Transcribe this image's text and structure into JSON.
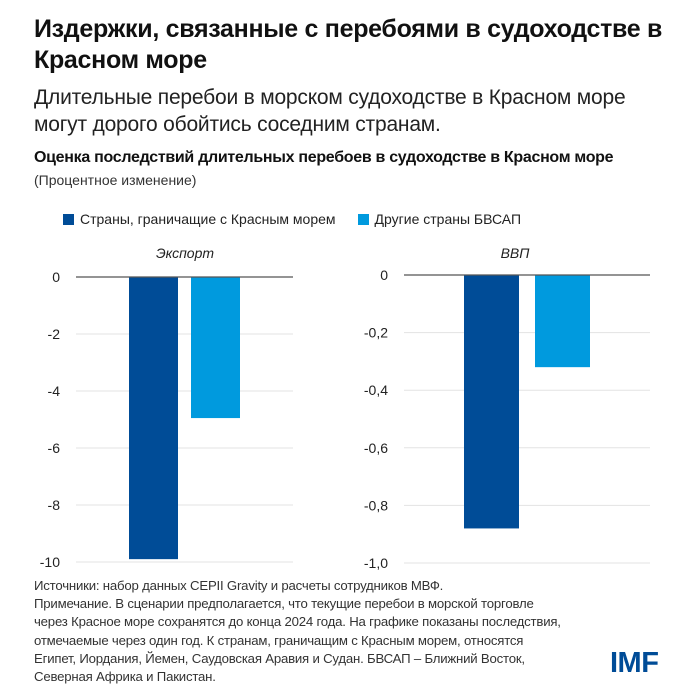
{
  "header": {
    "title": "Издержки, связанные с перебоями в судоходстве в Красном море",
    "subtitle": "Длительные перебои в морском судоходстве в Красном море могут дорого обойтись соседним странам."
  },
  "chart_data": [
    {
      "type": "bar",
      "title": "Экспорт",
      "categories": [
        "Экспорт"
      ],
      "series": [
        {
          "name": "Страны, граничащие с Красным морем",
          "color": "#004c97",
          "values": [
            -9.9
          ]
        },
        {
          "name": "Другие страны БВСАП",
          "color": "#009ade",
          "values": [
            -4.95
          ]
        }
      ],
      "ylim": [
        -10,
        0
      ],
      "yticks": [
        0,
        -2,
        -4,
        -6,
        -8,
        -10
      ],
      "ytick_labels": [
        "0",
        "-2",
        "-4",
        "-6",
        "-8",
        "-10"
      ],
      "grid": true
    },
    {
      "type": "bar",
      "title": "ВВП",
      "categories": [
        "ВВП"
      ],
      "series": [
        {
          "name": "Страны, граничащие с Красным морем",
          "color": "#004c97",
          "values": [
            -0.88
          ]
        },
        {
          "name": "Другие страны БВСАП",
          "color": "#009ade",
          "values": [
            -0.32
          ]
        }
      ],
      "ylim": [
        -1.0,
        0
      ],
      "yticks": [
        0,
        -0.2,
        -0.4,
        -0.6,
        -0.8,
        -1.0
      ],
      "ytick_labels": [
        "0",
        "-0,2",
        "-0,4",
        "-0,6",
        "-0,8",
        "-1,0"
      ],
      "grid": true
    }
  ],
  "chart_meta": {
    "title": "Оценка последствий длительных перебоев в судоходстве в Красном море",
    "unit": "(Процентное изменение)",
    "legend": [
      {
        "label": "Страны, граничащие с Красным морем",
        "color": "#004c97"
      },
      {
        "label": "Другие страны БВСАП",
        "color": "#009ade"
      }
    ],
    "legend_position": "top"
  },
  "footnote": {
    "lines": [
      "Источники: набор данных CEPII Gravity и расчеты сотрудников МВФ.",
      "Примечание. В сценарии предполагается, что текущие перебои в морской торговле",
      "через Красное море сохранятся до конца 2024 года. На графике показаны последствия,",
      "отмечаемые через один год. К странам, граничащим с Красным морем, относятся",
      "Египет, Иордания, Йемен, Саудовская Аравия и Судан. БВСАП – Ближний Восток,",
      "Северная Африка и Пакистан."
    ]
  },
  "logo": {
    "text": "IMF",
    "color": "#004c97"
  }
}
